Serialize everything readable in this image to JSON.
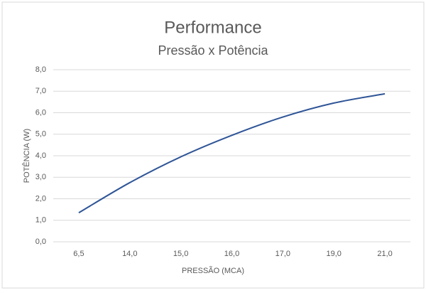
{
  "chart_data": {
    "type": "line",
    "title": "Performance",
    "subtitle": "Pressão x Potência",
    "x_label": "PRESSÃO (MCA)",
    "y_label": "POTÊNCIA (W)",
    "categories": [
      "6,5",
      "14,0",
      "15,0",
      "16,0",
      "17,0",
      "19,0",
      "21,0"
    ],
    "series": [
      {
        "color": "#2f5597",
        "values": [
          1.35,
          2.75,
          3.95,
          4.95,
          5.8,
          6.45,
          6.88
        ]
      }
    ],
    "ylim": [
      0,
      8
    ],
    "yticks": [
      {
        "value": 0,
        "label": "0,0"
      },
      {
        "value": 1,
        "label": "1,0"
      },
      {
        "value": 2,
        "label": "2,0"
      },
      {
        "value": 3,
        "label": "3,0"
      },
      {
        "value": 4,
        "label": "4,0"
      },
      {
        "value": 5,
        "label": "5,0"
      },
      {
        "value": 6,
        "label": "6,0"
      },
      {
        "value": 7,
        "label": "7,0"
      },
      {
        "value": 8,
        "label": "8,0"
      }
    ],
    "grid": true
  }
}
